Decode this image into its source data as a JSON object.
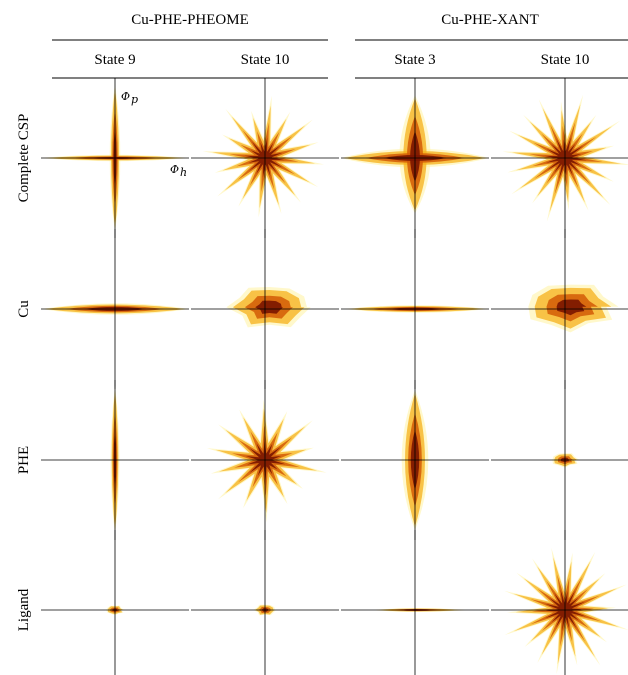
{
  "groups": [
    {
      "label": "Cu-PHE-PHEOME",
      "states": [
        "State 9",
        "State 10"
      ]
    },
    {
      "label": "Cu-PHE-XANT",
      "states": [
        "State 3",
        "State 10"
      ]
    }
  ],
  "rows": [
    "Complete CSP",
    "Cu",
    "PHE",
    "Ligand"
  ],
  "axis_labels": {
    "vertical": "Φ",
    "vertical_sub": "p",
    "horizontal": "Φ",
    "horizontal_sub": "h"
  },
  "colors": {
    "outer": "#fff3a0",
    "mid": "#f5b01a",
    "inner": "#d25a06",
    "core": "#7a1500",
    "axis": "#000000"
  },
  "panels": [
    [
      {
        "shape": "cross",
        "up": 1.0,
        "down": 1.0,
        "left": 1.0,
        "right": 1.0,
        "spread": 0.12
      },
      {
        "shape": "star",
        "extent": 0.85,
        "spikes": 16
      },
      {
        "shape": "cross",
        "up": 0.85,
        "down": 0.75,
        "left": 1.0,
        "right": 1.0,
        "spread": 0.35
      },
      {
        "shape": "star",
        "extent": 0.9,
        "spikes": 18
      }
    ],
    [
      {
        "shape": "hbar",
        "left": 1.0,
        "right": 1.0,
        "thick": 0.12
      },
      {
        "shape": "blob",
        "extent": 0.45,
        "offset": 0.2
      },
      {
        "shape": "hbar",
        "left": 0.95,
        "right": 1.0,
        "thick": 0.08
      },
      {
        "shape": "blob",
        "extent": 0.5,
        "offset": 0.25
      }
    ],
    [
      {
        "shape": "vbar",
        "up": 1.0,
        "down": 1.0,
        "thick": 0.1
      },
      {
        "shape": "star",
        "extent": 0.85,
        "spikes": 14
      },
      {
        "shape": "vbar",
        "up": 0.95,
        "down": 0.95,
        "thick": 0.3
      },
      {
        "shape": "blob",
        "extent": 0.15,
        "offset": 0.0
      }
    ],
    [
      {
        "shape": "blob",
        "extent": 0.1,
        "offset": 0.0
      },
      {
        "shape": "blob",
        "extent": 0.12,
        "offset": 0.0
      },
      {
        "shape": "hbar",
        "left": 0.55,
        "right": 0.7,
        "thick": 0.04
      },
      {
        "shape": "star",
        "extent": 0.9,
        "spikes": 18
      }
    ]
  ]
}
